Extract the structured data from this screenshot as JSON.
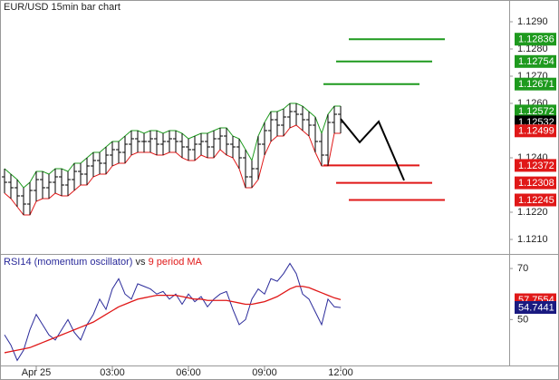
{
  "chart_data": [
    {
      "type": "ohlc",
      "title": "EUR/USD 15min bar chart",
      "categories": [
        null,
        null,
        null,
        null,
        null,
        "Apr 25",
        null,
        null,
        null,
        null,
        null,
        null,
        null,
        null,
        null,
        null,
        null,
        "03:00",
        null,
        null,
        null,
        null,
        null,
        null,
        null,
        null,
        null,
        null,
        null,
        "06:00",
        null,
        null,
        null,
        null,
        null,
        null,
        null,
        null,
        null,
        null,
        null,
        "09:00",
        null,
        null,
        null,
        null,
        null,
        null,
        null,
        null,
        null,
        null,
        null,
        "12:00"
      ],
      "open": [
        1.1233,
        1.1231,
        1.1229,
        1.1226,
        1.1223,
        1.1228,
        1.1232,
        1.1229,
        1.1231,
        1.1233,
        1.123,
        1.1232,
        1.1235,
        1.1234,
        1.1237,
        1.1239,
        1.1238,
        1.1241,
        1.1243,
        1.1242,
        1.1245,
        1.1247,
        1.1246,
        1.1246,
        1.1247,
        1.1245,
        1.1246,
        1.1247,
        1.1246,
        1.1244,
        1.1243,
        1.1245,
        1.1246,
        1.1244,
        1.1247,
        1.1248,
        1.1245,
        1.1244,
        1.124,
        1.1233,
        1.1236,
        1.1245,
        1.125,
        1.1254,
        1.1252,
        1.1255,
        1.1257,
        1.1256,
        1.1254,
        1.1252,
        1.1246,
        1.1241,
        1.1253,
        1.1256
      ],
      "high": [
        1.1236,
        1.1234,
        1.1232,
        1.1229,
        1.1231,
        1.1235,
        1.1235,
        1.1234,
        1.1236,
        1.1236,
        1.1235,
        1.1238,
        1.1238,
        1.124,
        1.1242,
        1.1242,
        1.1244,
        1.1246,
        1.1246,
        1.1248,
        1.125,
        1.125,
        1.1249,
        1.125,
        1.125,
        1.1249,
        1.125,
        1.125,
        1.1249,
        1.1247,
        1.1248,
        1.1249,
        1.1249,
        1.125,
        1.1251,
        1.1251,
        1.1248,
        1.1247,
        1.1243,
        1.1239,
        1.1248,
        1.1253,
        1.1257,
        1.1257,
        1.1258,
        1.126,
        1.126,
        1.1259,
        1.1257,
        1.1255,
        1.1249,
        1.1256,
        1.1259,
        1.1259
      ],
      "low": [
        1.1227,
        1.1225,
        1.1222,
        1.1219,
        1.1219,
        1.1224,
        1.1225,
        1.1225,
        1.1227,
        1.1226,
        1.1226,
        1.1228,
        1.123,
        1.123,
        1.1233,
        1.1234,
        1.1234,
        1.1237,
        1.1238,
        1.1238,
        1.1241,
        1.1242,
        1.1242,
        1.1242,
        1.1241,
        1.1241,
        1.1242,
        1.1242,
        1.124,
        1.1239,
        1.1239,
        1.1241,
        1.124,
        1.124,
        1.1243,
        1.1241,
        1.124,
        1.1236,
        1.1229,
        1.1229,
        1.1232,
        1.1241,
        1.1246,
        1.1248,
        1.1248,
        1.1251,
        1.1252,
        1.125,
        1.1248,
        1.1242,
        1.1237,
        1.1237,
        1.1249,
        1.1249
      ],
      "close": [
        1.1231,
        1.1229,
        1.1226,
        1.1223,
        1.1228,
        1.1232,
        1.1229,
        1.1231,
        1.1233,
        1.123,
        1.1232,
        1.1235,
        1.1234,
        1.1237,
        1.1239,
        1.1238,
        1.1241,
        1.1243,
        1.1242,
        1.1245,
        1.1247,
        1.1246,
        1.1246,
        1.1247,
        1.1245,
        1.1246,
        1.1247,
        1.1246,
        1.1244,
        1.1243,
        1.1245,
        1.1246,
        1.1244,
        1.1247,
        1.1248,
        1.1245,
        1.1244,
        1.124,
        1.1233,
        1.1236,
        1.1245,
        1.125,
        1.1254,
        1.1252,
        1.1255,
        1.1257,
        1.1256,
        1.1254,
        1.1252,
        1.1246,
        1.1241,
        1.1253,
        1.1256,
        1.1253
      ],
      "high_color": "#1e9a1e",
      "low_color": "#e01818",
      "projection": {
        "x": [
          53,
          56,
          59,
          63
        ],
        "values": [
          1.12543,
          1.12457,
          1.12533,
          1.12317
        ],
        "color": "#000000"
      },
      "levels": [
        {
          "value": 1.12836,
          "color": "#1e9a1e"
        },
        {
          "value": 1.12754,
          "color": "#1e9a1e"
        },
        {
          "value": 1.12671,
          "color": "#1e9a1e"
        },
        {
          "value": 1.12372,
          "color": "#e01818"
        },
        {
          "value": 1.12308,
          "color": "#e01818"
        },
        {
          "value": 1.12245,
          "color": "#e01818"
        }
      ],
      "tags": [
        {
          "value": 1.12836,
          "color": "#1e9a1e"
        },
        {
          "value": 1.12754,
          "color": "#1e9a1e"
        },
        {
          "value": 1.12671,
          "color": "#1e9a1e"
        },
        {
          "value": 1.12572,
          "color": "#1e9a1e"
        },
        {
          "value": 1.12532,
          "color": "#000000"
        },
        {
          "value": 1.12499,
          "color": "#e01818"
        },
        {
          "value": 1.12372,
          "color": "#e01818"
        },
        {
          "value": 1.12308,
          "color": "#e01818"
        },
        {
          "value": 1.12245,
          "color": "#e01818"
        }
      ],
      "ylim": [
        1.1205,
        1.1298
      ],
      "yticks": [
        {
          "value": 1.129,
          "label": "1.1290"
        },
        {
          "value": 1.128,
          "label": "1.1280"
        },
        {
          "value": 1.127,
          "label": "1.1270"
        },
        {
          "value": 1.126,
          "label": "1.1260"
        },
        {
          "value": 1.124,
          "label": "1.1240"
        },
        {
          "value": 1.122,
          "label": "1.1220"
        },
        {
          "value": 1.121,
          "label": "1.1210"
        }
      ]
    },
    {
      "type": "line",
      "title_parts": [
        {
          "text": "RSI14 (momentum oscillator)",
          "color": "#2a2a9a"
        },
        {
          "text": "vs",
          "color": "#222222"
        },
        {
          "text": "9 period MA",
          "color": "#e01818"
        }
      ],
      "series": [
        {
          "name": "RSI14",
          "color": "#2a2a9a",
          "values": [
            44,
            40,
            34,
            38,
            46,
            52,
            48,
            44,
            42,
            46,
            50,
            45,
            42,
            48,
            52,
            58,
            54,
            62,
            66,
            60,
            58,
            64,
            63,
            62,
            60,
            61,
            58,
            60,
            56,
            60,
            57,
            59,
            55,
            58,
            60,
            61,
            54,
            48,
            50,
            58,
            62,
            60,
            66,
            65,
            68,
            72,
            68,
            60,
            58,
            53,
            48,
            58,
            55,
            54.7
          ]
        },
        {
          "name": "9 period MA",
          "color": "#e01818",
          "values": [
            37,
            37.5,
            38,
            38.5,
            39,
            40,
            41,
            42,
            43,
            44,
            45,
            46,
            47,
            48,
            49,
            50.5,
            52,
            53.5,
            55,
            56,
            57,
            58,
            58.5,
            59,
            59.5,
            59.5,
            59.5,
            59.5,
            59,
            58.5,
            58,
            58,
            57.5,
            57.5,
            57.5,
            57.5,
            57,
            56.5,
            56,
            56,
            56.5,
            57,
            58,
            59,
            60.5,
            62,
            63,
            63,
            62.5,
            61.5,
            60.5,
            59.5,
            58.5,
            57.8
          ]
        }
      ],
      "tags": [
        {
          "value": 57.7554,
          "color": "#e01818"
        },
        {
          "value": 54.7441,
          "color": "#1a1a80"
        }
      ],
      "ylim": [
        32,
        75
      ],
      "yticks": [
        70,
        50
      ]
    }
  ]
}
